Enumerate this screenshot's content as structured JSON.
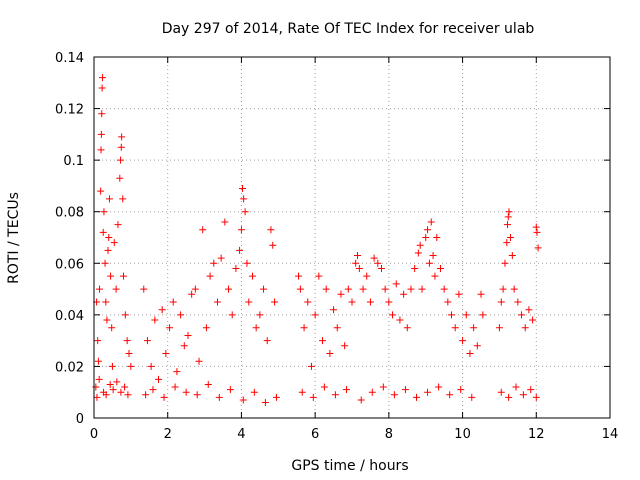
{
  "chart_data": {
    "type": "scatter",
    "title": "Day 297 of 2014, Rate Of TEC Index for receiver ulab",
    "xlabel": "GPS time / hours",
    "ylabel": "ROTI / TECUs",
    "xlim": [
      0,
      14
    ],
    "ylim": [
      0,
      0.14
    ],
    "xticks": [
      0,
      2,
      4,
      6,
      8,
      10,
      12,
      14
    ],
    "yticks": [
      0,
      0.02,
      0.04,
      0.06,
      0.08,
      0.1,
      0.12,
      0.14
    ],
    "xtick_labels": [
      "0",
      "2",
      "4",
      "6",
      "8",
      "10",
      "12",
      "14"
    ],
    "ytick_labels": [
      "0",
      "0.02",
      "0.04",
      "0.06",
      "0.08",
      "0.1",
      "0.12",
      "0.14"
    ],
    "grid": true,
    "marker": "+",
    "color": "#ff0000",
    "series": [
      {
        "name": "ROTI",
        "points": [
          [
            0.05,
            0.012
          ],
          [
            0.07,
            0.045
          ],
          [
            0.1,
            0.03
          ],
          [
            0.12,
            0.022
          ],
          [
            0.15,
            0.05
          ],
          [
            0.18,
            0.088
          ],
          [
            0.19,
            0.104
          ],
          [
            0.2,
            0.11
          ],
          [
            0.21,
            0.118
          ],
          [
            0.22,
            0.128
          ],
          [
            0.23,
            0.132
          ],
          [
            0.25,
            0.072
          ],
          [
            0.27,
            0.08
          ],
          [
            0.3,
            0.06
          ],
          [
            0.32,
            0.045
          ],
          [
            0.35,
            0.038
          ],
          [
            0.38,
            0.065
          ],
          [
            0.4,
            0.07
          ],
          [
            0.42,
            0.085
          ],
          [
            0.45,
            0.055
          ],
          [
            0.48,
            0.035
          ],
          [
            0.5,
            0.02
          ],
          [
            0.55,
            0.068
          ],
          [
            0.6,
            0.05
          ],
          [
            0.65,
            0.075
          ],
          [
            0.7,
            0.093
          ],
          [
            0.72,
            0.1
          ],
          [
            0.74,
            0.105
          ],
          [
            0.75,
            0.109
          ],
          [
            0.78,
            0.085
          ],
          [
            0.8,
            0.055
          ],
          [
            0.85,
            0.04
          ],
          [
            0.9,
            0.03
          ],
          [
            0.95,
            0.025
          ],
          [
            1.0,
            0.02
          ],
          [
            0.08,
            0.008
          ],
          [
            0.14,
            0.015
          ],
          [
            0.26,
            0.01
          ],
          [
            0.33,
            0.009
          ],
          [
            0.44,
            0.013
          ],
          [
            0.52,
            0.011
          ],
          [
            0.62,
            0.014
          ],
          [
            0.73,
            0.01
          ],
          [
            0.83,
            0.012
          ],
          [
            0.92,
            0.009
          ],
          [
            1.35,
            0.05
          ],
          [
            1.45,
            0.03
          ],
          [
            1.55,
            0.02
          ],
          [
            1.65,
            0.038
          ],
          [
            1.75,
            0.015
          ],
          [
            1.85,
            0.042
          ],
          [
            1.95,
            0.025
          ],
          [
            2.05,
            0.035
          ],
          [
            2.15,
            0.045
          ],
          [
            2.25,
            0.018
          ],
          [
            2.35,
            0.04
          ],
          [
            2.45,
            0.028
          ],
          [
            2.55,
            0.032
          ],
          [
            2.65,
            0.048
          ],
          [
            2.75,
            0.05
          ],
          [
            2.85,
            0.022
          ],
          [
            2.95,
            0.073
          ],
          [
            3.05,
            0.035
          ],
          [
            3.15,
            0.055
          ],
          [
            3.25,
            0.06
          ],
          [
            3.35,
            0.045
          ],
          [
            3.45,
            0.062
          ],
          [
            3.55,
            0.076
          ],
          [
            3.65,
            0.05
          ],
          [
            3.75,
            0.04
          ],
          [
            3.85,
            0.058
          ],
          [
            3.95,
            0.065
          ],
          [
            4.0,
            0.073
          ],
          [
            4.03,
            0.089
          ],
          [
            4.06,
            0.085
          ],
          [
            4.1,
            0.08
          ],
          [
            4.15,
            0.06
          ],
          [
            4.2,
            0.045
          ],
          [
            4.3,
            0.055
          ],
          [
            4.4,
            0.035
          ],
          [
            4.5,
            0.04
          ],
          [
            4.6,
            0.05
          ],
          [
            4.7,
            0.03
          ],
          [
            4.8,
            0.073
          ],
          [
            4.85,
            0.067
          ],
          [
            4.9,
            0.045
          ],
          [
            1.4,
            0.009
          ],
          [
            1.6,
            0.011
          ],
          [
            1.9,
            0.008
          ],
          [
            2.2,
            0.012
          ],
          [
            2.5,
            0.01
          ],
          [
            2.8,
            0.009
          ],
          [
            3.1,
            0.013
          ],
          [
            3.4,
            0.008
          ],
          [
            3.7,
            0.011
          ],
          [
            4.05,
            0.007
          ],
          [
            4.35,
            0.01
          ],
          [
            4.65,
            0.006
          ],
          [
            4.95,
            0.008
          ],
          [
            5.55,
            0.055
          ],
          [
            5.6,
            0.05
          ],
          [
            5.7,
            0.035
          ],
          [
            5.8,
            0.045
          ],
          [
            5.9,
            0.02
          ],
          [
            6.0,
            0.04
          ],
          [
            6.1,
            0.055
          ],
          [
            6.2,
            0.03
          ],
          [
            6.3,
            0.05
          ],
          [
            6.4,
            0.025
          ],
          [
            6.5,
            0.042
          ],
          [
            6.6,
            0.035
          ],
          [
            6.7,
            0.048
          ],
          [
            6.8,
            0.028
          ],
          [
            6.9,
            0.05
          ],
          [
            7.0,
            0.045
          ],
          [
            7.1,
            0.06
          ],
          [
            7.15,
            0.063
          ],
          [
            7.2,
            0.058
          ],
          [
            7.3,
            0.05
          ],
          [
            7.4,
            0.055
          ],
          [
            7.5,
            0.045
          ],
          [
            7.6,
            0.062
          ],
          [
            7.7,
            0.06
          ],
          [
            7.8,
            0.058
          ],
          [
            7.9,
            0.05
          ],
          [
            8.0,
            0.045
          ],
          [
            8.1,
            0.04
          ],
          [
            8.2,
            0.052
          ],
          [
            8.3,
            0.038
          ],
          [
            8.4,
            0.048
          ],
          [
            8.5,
            0.035
          ],
          [
            8.6,
            0.05
          ],
          [
            8.7,
            0.058
          ],
          [
            8.8,
            0.064
          ],
          [
            8.85,
            0.067
          ],
          [
            8.9,
            0.05
          ],
          [
            9.0,
            0.07
          ],
          [
            9.05,
            0.073
          ],
          [
            9.1,
            0.06
          ],
          [
            9.15,
            0.076
          ],
          [
            9.2,
            0.063
          ],
          [
            9.25,
            0.055
          ],
          [
            9.3,
            0.07
          ],
          [
            9.4,
            0.058
          ],
          [
            9.5,
            0.05
          ],
          [
            9.6,
            0.045
          ],
          [
            9.7,
            0.04
          ],
          [
            9.8,
            0.035
          ],
          [
            9.9,
            0.048
          ],
          [
            10.0,
            0.03
          ],
          [
            10.1,
            0.04
          ],
          [
            10.2,
            0.025
          ],
          [
            10.3,
            0.035
          ],
          [
            10.4,
            0.028
          ],
          [
            5.65,
            0.01
          ],
          [
            5.95,
            0.008
          ],
          [
            6.25,
            0.012
          ],
          [
            6.55,
            0.009
          ],
          [
            6.85,
            0.011
          ],
          [
            7.25,
            0.007
          ],
          [
            7.55,
            0.01
          ],
          [
            7.85,
            0.012
          ],
          [
            8.15,
            0.009
          ],
          [
            8.45,
            0.011
          ],
          [
            8.75,
            0.008
          ],
          [
            9.05,
            0.01
          ],
          [
            9.35,
            0.012
          ],
          [
            9.65,
            0.009
          ],
          [
            9.95,
            0.011
          ],
          [
            10.25,
            0.008
          ],
          [
            10.5,
            0.048
          ],
          [
            10.55,
            0.04
          ],
          [
            11.0,
            0.035
          ],
          [
            11.05,
            0.045
          ],
          [
            11.1,
            0.05
          ],
          [
            11.15,
            0.06
          ],
          [
            11.2,
            0.068
          ],
          [
            11.22,
            0.075
          ],
          [
            11.24,
            0.078
          ],
          [
            11.26,
            0.08
          ],
          [
            11.3,
            0.07
          ],
          [
            11.35,
            0.063
          ],
          [
            11.4,
            0.05
          ],
          [
            11.5,
            0.045
          ],
          [
            11.6,
            0.04
          ],
          [
            11.7,
            0.035
          ],
          [
            11.8,
            0.042
          ],
          [
            11.9,
            0.038
          ],
          [
            12.0,
            0.074
          ],
          [
            12.02,
            0.072
          ],
          [
            12.05,
            0.066
          ],
          [
            11.05,
            0.01
          ],
          [
            11.25,
            0.008
          ],
          [
            11.45,
            0.012
          ],
          [
            11.65,
            0.009
          ],
          [
            11.85,
            0.011
          ],
          [
            12.0,
            0.008
          ]
        ]
      }
    ]
  }
}
